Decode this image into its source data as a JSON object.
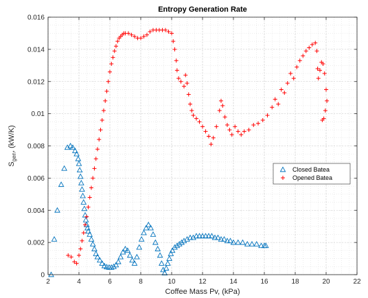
{
  "chart_data": {
    "type": "scatter",
    "title": "Entropy Generation Rate",
    "xlabel": "Coffee Mass Pv, (kPa)",
    "ylabel_main": "S",
    "ylabel_sub": "gen",
    "ylabel_rest": ", (kW/K)",
    "xlim": [
      2,
      22
    ],
    "ylim": [
      0,
      0.016
    ],
    "x_ticks": [
      2,
      4,
      6,
      8,
      10,
      12,
      14,
      16,
      18,
      20,
      22
    ],
    "x_tick_labels": [
      "2",
      "4",
      "6",
      "8",
      "10",
      "12",
      "14",
      "16",
      "18",
      "20",
      "22"
    ],
    "y_ticks": [
      0,
      0.002,
      0.004,
      0.006,
      0.008,
      0.01,
      0.012,
      0.014,
      0.016
    ],
    "y_tick_labels": [
      "0",
      "0.002",
      "0.004",
      "0.006",
      "0.008",
      "0.01",
      "0.012",
      "0.014",
      "0.016"
    ],
    "grid": true,
    "minor_grid": true,
    "legend_position": "center-right",
    "series": [
      {
        "name": "Closed Batea",
        "marker": "triangle",
        "color": "#0072BD",
        "points": [
          [
            2.2,
            0.0
          ],
          [
            2.4,
            0.0022
          ],
          [
            2.6,
            0.004
          ],
          [
            2.85,
            0.0056
          ],
          [
            3.05,
            0.0066
          ],
          [
            3.25,
            0.0079
          ],
          [
            3.45,
            0.008
          ],
          [
            3.6,
            0.0079
          ],
          [
            3.75,
            0.0077
          ],
          [
            3.85,
            0.0075
          ],
          [
            3.95,
            0.0072
          ],
          [
            4.0,
            0.0069
          ],
          [
            4.05,
            0.0065
          ],
          [
            4.1,
            0.0061
          ],
          [
            4.15,
            0.0057
          ],
          [
            4.2,
            0.0053
          ],
          [
            4.25,
            0.0049
          ],
          [
            4.3,
            0.0045
          ],
          [
            4.35,
            0.0041
          ],
          [
            4.4,
            0.0037
          ],
          [
            4.45,
            0.0034
          ],
          [
            4.5,
            0.0031
          ],
          [
            4.55,
            0.0029
          ],
          [
            4.6,
            0.0027
          ],
          [
            4.7,
            0.0025
          ],
          [
            4.8,
            0.0022
          ],
          [
            4.9,
            0.0019
          ],
          [
            5.0,
            0.0016
          ],
          [
            5.1,
            0.0013
          ],
          [
            5.2,
            0.0011
          ],
          [
            5.35,
            0.0009
          ],
          [
            5.5,
            0.0007
          ],
          [
            5.65,
            0.00055
          ],
          [
            5.8,
            0.00048
          ],
          [
            5.95,
            0.00045
          ],
          [
            6.1,
            0.00045
          ],
          [
            6.25,
            0.0005
          ],
          [
            6.4,
            0.0006
          ],
          [
            6.55,
            0.0008
          ],
          [
            6.7,
            0.0011
          ],
          [
            6.85,
            0.0014
          ],
          [
            7.0,
            0.0016
          ],
          [
            7.15,
            0.0015
          ],
          [
            7.3,
            0.0012
          ],
          [
            7.45,
            0.0009
          ],
          [
            7.6,
            0.0007
          ],
          [
            7.75,
            0.0011
          ],
          [
            7.9,
            0.0017
          ],
          [
            8.05,
            0.0022
          ],
          [
            8.2,
            0.0026
          ],
          [
            8.35,
            0.0029
          ],
          [
            8.5,
            0.0031
          ],
          [
            8.65,
            0.0029
          ],
          [
            8.8,
            0.0025
          ],
          [
            8.95,
            0.002
          ],
          [
            9.1,
            0.0016
          ],
          [
            9.25,
            0.0012
          ],
          [
            9.35,
            0.0007
          ],
          [
            9.45,
            0.0003
          ],
          [
            9.55,
            0.0001
          ],
          [
            9.65,
            0.0004
          ],
          [
            9.75,
            0.0007
          ],
          [
            9.85,
            0.001
          ],
          [
            9.95,
            0.0013
          ],
          [
            10.05,
            0.0015
          ],
          [
            10.2,
            0.0017
          ],
          [
            10.35,
            0.0018
          ],
          [
            10.5,
            0.0019
          ],
          [
            10.65,
            0.002
          ],
          [
            10.8,
            0.0021
          ],
          [
            11.0,
            0.0022
          ],
          [
            11.2,
            0.0023
          ],
          [
            11.4,
            0.0023
          ],
          [
            11.6,
            0.0024
          ],
          [
            11.8,
            0.0024
          ],
          [
            12.0,
            0.0024
          ],
          [
            12.2,
            0.0024
          ],
          [
            12.4,
            0.0024
          ],
          [
            12.6,
            0.0024
          ],
          [
            12.8,
            0.0023
          ],
          [
            13.0,
            0.0023
          ],
          [
            13.2,
            0.0022
          ],
          [
            13.4,
            0.0022
          ],
          [
            13.6,
            0.0021
          ],
          [
            13.8,
            0.0021
          ],
          [
            14.0,
            0.002
          ],
          [
            14.3,
            0.002
          ],
          [
            14.6,
            0.002
          ],
          [
            14.9,
            0.0019
          ],
          [
            15.2,
            0.0019
          ],
          [
            15.5,
            0.0019
          ],
          [
            15.8,
            0.0018
          ],
          [
            16.0,
            0.0018
          ],
          [
            16.1,
            0.0018
          ]
        ]
      },
      {
        "name": "Opened Batea",
        "marker": "plus",
        "color": "#FF0000",
        "points": [
          [
            3.3,
            0.0012
          ],
          [
            3.5,
            0.0011
          ],
          [
            3.7,
            0.0008
          ],
          [
            3.85,
            0.0007
          ],
          [
            4.0,
            0.0012
          ],
          [
            4.1,
            0.0016
          ],
          [
            4.2,
            0.0021
          ],
          [
            4.3,
            0.0026
          ],
          [
            4.4,
            0.0031
          ],
          [
            4.5,
            0.0036
          ],
          [
            4.6,
            0.0042
          ],
          [
            4.7,
            0.0048
          ],
          [
            4.8,
            0.0054
          ],
          [
            4.9,
            0.006
          ],
          [
            5.0,
            0.0066
          ],
          [
            5.1,
            0.0072
          ],
          [
            5.2,
            0.0078
          ],
          [
            5.3,
            0.0084
          ],
          [
            5.4,
            0.009
          ],
          [
            5.5,
            0.0096
          ],
          [
            5.6,
            0.0102
          ],
          [
            5.7,
            0.0108
          ],
          [
            5.8,
            0.0114
          ],
          [
            5.9,
            0.012
          ],
          [
            6.0,
            0.0126
          ],
          [
            6.1,
            0.0131
          ],
          [
            6.2,
            0.0135
          ],
          [
            6.3,
            0.0139
          ],
          [
            6.4,
            0.0142
          ],
          [
            6.5,
            0.0145
          ],
          [
            6.6,
            0.0147
          ],
          [
            6.7,
            0.0148
          ],
          [
            6.8,
            0.0149
          ],
          [
            6.9,
            0.015
          ],
          [
            7.0,
            0.015
          ],
          [
            7.2,
            0.015
          ],
          [
            7.4,
            0.0149
          ],
          [
            7.6,
            0.0148
          ],
          [
            7.8,
            0.0147
          ],
          [
            8.0,
            0.0147
          ],
          [
            8.2,
            0.0148
          ],
          [
            8.4,
            0.0149
          ],
          [
            8.6,
            0.0151
          ],
          [
            8.8,
            0.0152
          ],
          [
            9.0,
            0.0152
          ],
          [
            9.2,
            0.0152
          ],
          [
            9.4,
            0.0152
          ],
          [
            9.6,
            0.0152
          ],
          [
            9.8,
            0.0151
          ],
          [
            10.0,
            0.015
          ],
          [
            10.1,
            0.0145
          ],
          [
            10.2,
            0.014
          ],
          [
            10.3,
            0.0133
          ],
          [
            10.35,
            0.0127
          ],
          [
            10.45,
            0.0122
          ],
          [
            10.6,
            0.012
          ],
          [
            10.8,
            0.0117
          ],
          [
            10.9,
            0.0124
          ],
          [
            11.0,
            0.0119
          ],
          [
            11.1,
            0.0112
          ],
          [
            11.2,
            0.0106
          ],
          [
            11.3,
            0.0102
          ],
          [
            11.4,
            0.0099
          ],
          [
            11.6,
            0.0097
          ],
          [
            11.8,
            0.0095
          ],
          [
            12.0,
            0.0092
          ],
          [
            12.2,
            0.0089
          ],
          [
            12.4,
            0.0086
          ],
          [
            12.55,
            0.0081
          ],
          [
            12.7,
            0.0085
          ],
          [
            12.9,
            0.0092
          ],
          [
            13.1,
            0.0102
          ],
          [
            13.2,
            0.0108
          ],
          [
            13.3,
            0.0105
          ],
          [
            13.45,
            0.0098
          ],
          [
            13.6,
            0.0093
          ],
          [
            13.75,
            0.009
          ],
          [
            13.9,
            0.0087
          ],
          [
            14.1,
            0.0092
          ],
          [
            14.3,
            0.0089
          ],
          [
            14.5,
            0.0087
          ],
          [
            14.7,
            0.0089
          ],
          [
            15.0,
            0.009
          ],
          [
            15.3,
            0.0093
          ],
          [
            15.6,
            0.0094
          ],
          [
            15.9,
            0.0096
          ],
          [
            16.2,
            0.0099
          ],
          [
            16.5,
            0.0104
          ],
          [
            16.7,
            0.0109
          ],
          [
            16.9,
            0.0106
          ],
          [
            17.1,
            0.0115
          ],
          [
            17.3,
            0.0113
          ],
          [
            17.5,
            0.0119
          ],
          [
            17.7,
            0.0125
          ],
          [
            17.9,
            0.0122
          ],
          [
            18.1,
            0.0129
          ],
          [
            18.3,
            0.0133
          ],
          [
            18.5,
            0.0136
          ],
          [
            18.7,
            0.0139
          ],
          [
            18.9,
            0.0141
          ],
          [
            19.1,
            0.0143
          ],
          [
            19.3,
            0.0144
          ],
          [
            19.4,
            0.0139
          ],
          [
            19.45,
            0.0128
          ],
          [
            19.5,
            0.0122
          ],
          [
            19.6,
            0.0127
          ],
          [
            19.7,
            0.0132
          ],
          [
            19.8,
            0.0131
          ],
          [
            19.9,
            0.0125
          ],
          [
            20.0,
            0.0115
          ],
          [
            20.05,
            0.0108
          ],
          [
            19.95,
            0.0102
          ],
          [
            19.85,
            0.0097
          ],
          [
            19.75,
            0.0096
          ]
        ]
      }
    ]
  }
}
